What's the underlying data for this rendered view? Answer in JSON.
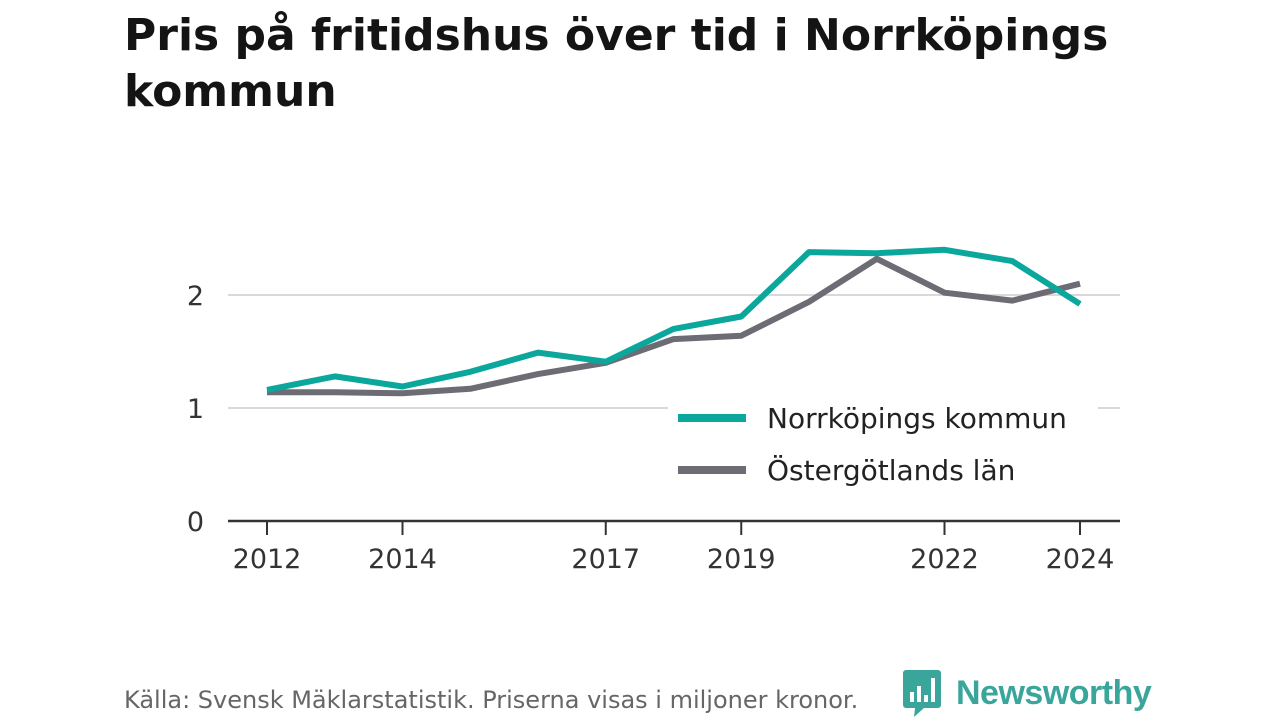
{
  "title": "Pris på fritidshus över tid i Norrköpings kommun",
  "source": "Källa: Svensk Mäklarstatistik. Priserna visas i miljoner kronor.",
  "logo": "Newsworthy",
  "colors": {
    "norrkoping": "#0ba79c",
    "ostergotland": "#6d6b74",
    "grid": "#d9d9d9",
    "axis": "#333333",
    "logo": "#3aa69b"
  },
  "chart_data": {
    "type": "line",
    "title": "Pris på fritidshus över tid i Norrköpings kommun",
    "xlabel": "",
    "ylabel": "",
    "xlim": [
      2012,
      2024
    ],
    "ylim": [
      0,
      2.5
    ],
    "yticks": [
      0,
      1,
      2
    ],
    "xticks": [
      2012,
      2014,
      2017,
      2019,
      2022,
      2024
    ],
    "grid": true,
    "legend_position": "bottom-right",
    "x": [
      2012,
      2013,
      2014,
      2015,
      2016,
      2017,
      2018,
      2019,
      2020,
      2021,
      2022,
      2023,
      2024
    ],
    "series": [
      {
        "name": "Norrköpings kommun",
        "color": "#0ba79c",
        "values": [
          1.16,
          1.28,
          1.19,
          1.32,
          1.49,
          1.41,
          1.7,
          1.81,
          2.38,
          2.37,
          2.4,
          2.3,
          1.92
        ]
      },
      {
        "name": "Östergötlands län",
        "color": "#6d6b74",
        "values": [
          1.14,
          1.14,
          1.13,
          1.17,
          1.3,
          1.4,
          1.61,
          1.64,
          1.94,
          2.32,
          2.02,
          1.95,
          2.1
        ]
      }
    ]
  }
}
